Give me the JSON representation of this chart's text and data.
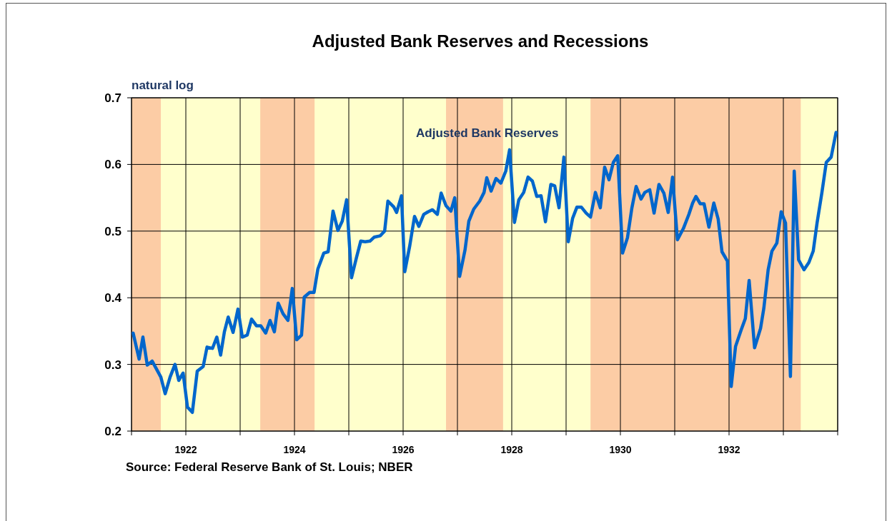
{
  "chart_data": {
    "type": "line",
    "title": "Adjusted Bank Reserves and Recessions",
    "ylabel": "natural log",
    "xlim": [
      1921,
      1934
    ],
    "ylim": [
      0.2,
      0.7
    ],
    "xticks": [
      {
        "value": 1921,
        "label": null
      },
      1922,
      {
        "value": 1923,
        "label": null
      },
      1924,
      {
        "value": 1925,
        "label": null
      },
      1926,
      {
        "value": 1927,
        "label": null
      },
      1928,
      {
        "value": 1929,
        "label": null
      },
      1930,
      {
        "value": 1931,
        "label": null
      },
      1932,
      {
        "value": 1933,
        "label": null
      },
      {
        "value": 1934,
        "label": null
      }
    ],
    "yticks": [
      0.2,
      0.3,
      0.4,
      0.5,
      0.6,
      0.7
    ],
    "grid": true,
    "legend": false,
    "bands": [
      {
        "axis": "x",
        "from": 1921.0,
        "to": 1921.54,
        "color": "#fccca5"
      },
      {
        "axis": "x",
        "from": 1923.37,
        "to": 1924.37,
        "color": "#fccca5"
      },
      {
        "axis": "x",
        "from": 1926.79,
        "to": 1927.84,
        "color": "#fccca5"
      },
      {
        "axis": "x",
        "from": 1929.45,
        "to": 1933.32,
        "color": "#fccca5"
      }
    ],
    "annotations": [
      "Source: Federal Reserve Bank of St. Louis; NBER"
    ],
    "series": [
      {
        "name": "Adjusted Bank Reserves",
        "color": "#0066cc",
        "x": [
          1921.03,
          1921.14,
          1921.21,
          1921.29,
          1921.38,
          1921.46,
          1921.54,
          1921.62,
          1921.71,
          1921.8,
          1921.87,
          1921.95,
          1922.03,
          1922.12,
          1922.21,
          1922.32,
          1922.39,
          1922.49,
          1922.57,
          1922.64,
          1922.71,
          1922.78,
          1922.87,
          1922.96,
          1923.04,
          1923.13,
          1923.21,
          1923.3,
          1923.38,
          1923.47,
          1923.55,
          1923.63,
          1923.7,
          1923.79,
          1923.88,
          1923.96,
          1924.04,
          1924.13,
          1924.18,
          1924.28,
          1924.36,
          1924.43,
          1924.54,
          1924.62,
          1924.71,
          1924.8,
          1924.88,
          1924.96,
          1925.05,
          1925.14,
          1925.22,
          1925.3,
          1925.39,
          1925.47,
          1925.58,
          1925.66,
          1925.72,
          1925.83,
          1925.88,
          1925.97,
          1926.03,
          1926.12,
          1926.21,
          1926.29,
          1926.38,
          1926.46,
          1926.54,
          1926.63,
          1926.7,
          1926.79,
          1926.88,
          1926.95,
          1927.04,
          1927.14,
          1927.21,
          1927.3,
          1927.41,
          1927.49,
          1927.54,
          1927.62,
          1927.71,
          1927.8,
          1927.89,
          1927.96,
          1928.05,
          1928.13,
          1928.22,
          1928.3,
          1928.38,
          1928.46,
          1928.54,
          1928.62,
          1928.72,
          1928.79,
          1928.87,
          1928.96,
          1929.04,
          1929.12,
          1929.2,
          1929.28,
          1929.37,
          1929.45,
          1929.54,
          1929.63,
          1929.71,
          1929.79,
          1929.87,
          1929.95,
          1930.04,
          1930.13,
          1930.21,
          1930.29,
          1930.38,
          1930.45,
          1930.54,
          1930.62,
          1930.71,
          1930.8,
          1930.88,
          1930.96,
          1931.05,
          1931.16,
          1931.26,
          1931.33,
          1931.39,
          1931.47,
          1931.54,
          1931.63,
          1931.72,
          1931.8,
          1931.87,
          1931.97,
          1932.04,
          1932.12,
          1932.22,
          1932.3,
          1932.37,
          1932.47,
          1932.58,
          1932.64,
          1932.72,
          1932.79,
          1932.88,
          1932.96,
          1933.04,
          1933.13,
          1933.2,
          1933.28,
          1933.38,
          1933.47,
          1933.55,
          1933.62,
          1933.71,
          1933.79,
          1933.88,
          1933.97
        ],
        "values": [
          0.347,
          0.308,
          0.341,
          0.299,
          0.305,
          0.293,
          0.281,
          0.256,
          0.281,
          0.3,
          0.276,
          0.287,
          0.236,
          0.228,
          0.29,
          0.297,
          0.326,
          0.324,
          0.341,
          0.314,
          0.349,
          0.371,
          0.348,
          0.383,
          0.341,
          0.344,
          0.368,
          0.358,
          0.358,
          0.347,
          0.366,
          0.349,
          0.392,
          0.376,
          0.366,
          0.414,
          0.337,
          0.344,
          0.401,
          0.408,
          0.408,
          0.443,
          0.467,
          0.469,
          0.53,
          0.501,
          0.515,
          0.547,
          0.43,
          0.46,
          0.485,
          0.484,
          0.485,
          0.491,
          0.493,
          0.5,
          0.545,
          0.536,
          0.528,
          0.553,
          0.439,
          0.477,
          0.522,
          0.507,
          0.525,
          0.529,
          0.532,
          0.525,
          0.557,
          0.538,
          0.53,
          0.55,
          0.432,
          0.472,
          0.515,
          0.533,
          0.545,
          0.558,
          0.58,
          0.56,
          0.579,
          0.572,
          0.59,
          0.622,
          0.513,
          0.547,
          0.558,
          0.581,
          0.575,
          0.552,
          0.553,
          0.514,
          0.57,
          0.568,
          0.535,
          0.611,
          0.484,
          0.519,
          0.536,
          0.536,
          0.527,
          0.521,
          0.558,
          0.535,
          0.596,
          0.577,
          0.603,
          0.613,
          0.467,
          0.49,
          0.534,
          0.567,
          0.548,
          0.558,
          0.562,
          0.527,
          0.57,
          0.557,
          0.528,
          0.581,
          0.487,
          0.504,
          0.525,
          0.542,
          0.552,
          0.541,
          0.541,
          0.506,
          0.542,
          0.518,
          0.469,
          0.455,
          0.267,
          0.327,
          0.351,
          0.369,
          0.426,
          0.325,
          0.354,
          0.384,
          0.442,
          0.47,
          0.482,
          0.529,
          0.512,
          0.282,
          0.59,
          0.457,
          0.442,
          0.453,
          0.47,
          0.512,
          0.558,
          0.603,
          0.611,
          0.648
        ]
      }
    ]
  }
}
